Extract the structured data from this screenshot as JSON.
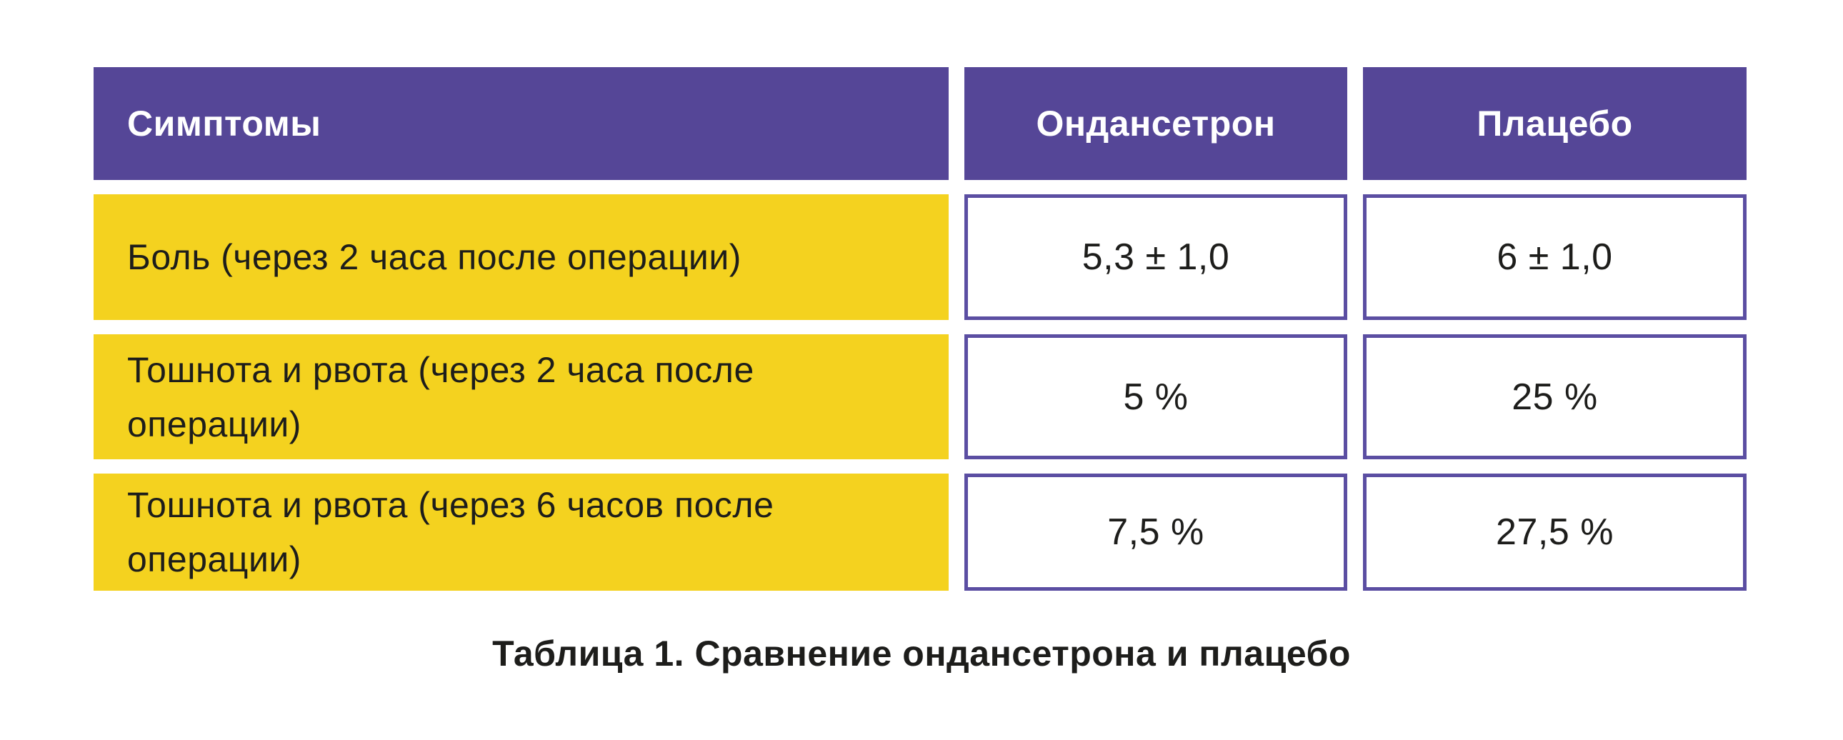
{
  "chart_data": {
    "type": "table",
    "title": "Таблица 1. Сравнение ондансетрона и плацебо",
    "columns": [
      "Симптомы",
      "Ондансетрон",
      "Плацебо"
    ],
    "rows": [
      [
        "Боль (через 2 часа после операции)",
        "5,3 ± 1,0",
        "6 ± 1,0"
      ],
      [
        "Тошнота и рвота (через 2 часа после операции)",
        "5 %",
        "25 %"
      ],
      [
        "Тошнота и рвота (через 6 часов после операции)",
        "7,5 %",
        "27,5 %"
      ]
    ],
    "layout_hints": {
      "header_style": "purple filled cells, white bold text",
      "label_column_style": "yellow filled cells, black text, left-aligned",
      "value_cells_style": "white cells with purple border, centered text",
      "caption_position": "bottom center, bold"
    }
  },
  "colors": {
    "page_bg": "#FFFFFF",
    "header_bg": "#554697",
    "header_text": "#FFFFFF",
    "row_bg": "#F4D21F",
    "cell_border": "#5B4EA2",
    "value_bg": "#FFFFFF",
    "text": "#1D1D1B"
  }
}
